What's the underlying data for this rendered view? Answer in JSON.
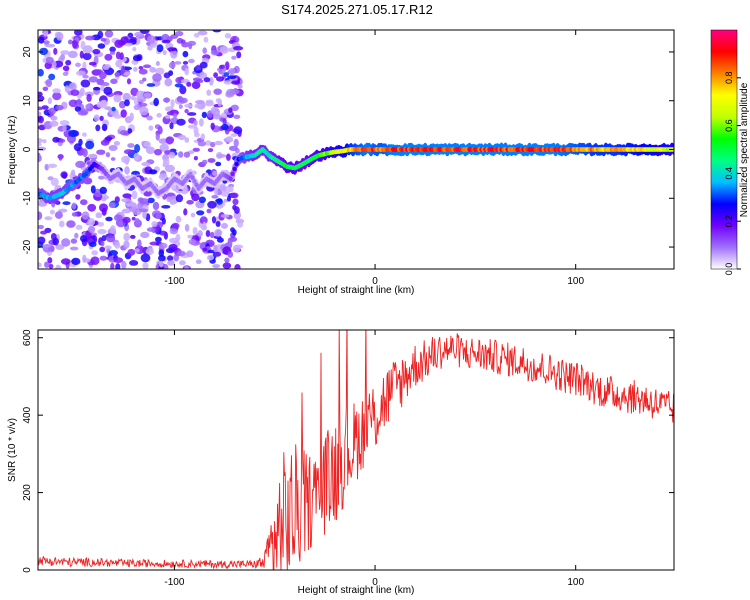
{
  "title": "S174.2025.271.05.17.R12",
  "chart_data": [
    {
      "type": "heatmap",
      "title": "S174.2025.271.05.17.R12",
      "xlabel": "Height of straight line (km)",
      "ylabel": "Frequency (Hz)",
      "xlim": [
        -168,
        149
      ],
      "ylim": [
        -24.5,
        24.5
      ],
      "x_ticks": [
        -100,
        0,
        100
      ],
      "y_ticks": [
        -20,
        -10,
        0,
        10,
        20
      ],
      "colorbar": {
        "label": "Normalized spectral amplitude",
        "range": [
          0,
          1
        ],
        "ticks": [
          0.0,
          0.2,
          0.4,
          0.6,
          0.8
        ],
        "tick_labels": [
          "0.0",
          "0.2",
          "0.4",
          "0.6",
          "0.8"
        ],
        "colormap": [
          "#ffffff",
          "#a070ff",
          "#7000ff",
          "#0000ff",
          "#00c0ff",
          "#00ff80",
          "#00ff00",
          "#c0ff00",
          "#ffff00",
          "#ff8000",
          "#ff0000",
          "#ff0080"
        ]
      },
      "signal_ridge": {
        "name": "Frequency trace",
        "x": [
          -168,
          -162,
          -156,
          -150,
          -144,
          -140,
          -136,
          -132,
          -128,
          -124,
          -120,
          -116,
          -112,
          -108,
          -104,
          -100,
          -96,
          -92,
          -88,
          -84,
          -80,
          -76,
          -72,
          -68,
          -64,
          -60,
          -56,
          -52,
          -48,
          -44,
          -40,
          -36,
          -32,
          -28,
          -24,
          -20,
          -16,
          -12,
          -8,
          -4,
          0,
          4,
          8,
          12,
          16,
          20,
          30,
          40,
          50,
          60,
          70,
          80,
          90,
          100,
          110,
          120,
          130,
          140,
          149
        ],
        "y": [
          -9,
          -10,
          -9,
          -7,
          -5,
          -3,
          -4,
          -6,
          -5,
          -7,
          -6,
          -8,
          -7,
          -9,
          -8,
          -6,
          -7,
          -5,
          -8,
          -6,
          -7,
          -5,
          -6,
          -2,
          -1.5,
          -1.2,
          0,
          -1.5,
          -2.5,
          -3.5,
          -3.8,
          -3,
          -2,
          -1.2,
          -0.8,
          -0.5,
          -0.3,
          0,
          0,
          0,
          0,
          0,
          0,
          0,
          0,
          0,
          0,
          0,
          0,
          0,
          0,
          0,
          0,
          0,
          0,
          0,
          0,
          0,
          0
        ],
        "amplitude": [
          0.35,
          0.4,
          0.4,
          0.35,
          0.35,
          0.25,
          0.15,
          0.1,
          0.1,
          0.1,
          0.1,
          0.1,
          0.1,
          0.1,
          0.1,
          0.1,
          0.1,
          0.1,
          0.1,
          0.1,
          0.1,
          0.1,
          0.15,
          0.3,
          0.4,
          0.45,
          0.45,
          0.45,
          0.5,
          0.55,
          0.55,
          0.5,
          0.55,
          0.6,
          0.65,
          0.7,
          0.75,
          0.85,
          0.9,
          0.95,
          0.9,
          0.9,
          0.95,
          0.95,
          0.95,
          0.95,
          0.95,
          0.95,
          0.95,
          0.95,
          0.95,
          0.95,
          0.95,
          0.9,
          0.85,
          0.85,
          0.8,
          0.75,
          0.7
        ]
      },
      "noise_region": {
        "x_range": [
          -168,
          -67
        ],
        "amplitude_range": [
          0.05,
          0.3
        ]
      }
    },
    {
      "type": "line",
      "xlabel": "Height of straight line (km)",
      "ylabel": "SNR (10 * v/v)",
      "xlim": [
        -168,
        149
      ],
      "ylim": [
        0,
        620
      ],
      "x_ticks": [
        -100,
        0,
        100
      ],
      "y_ticks": [
        0,
        200,
        400,
        600
      ],
      "line_color": "#ee2222",
      "series": [
        {
          "x": [
            -168,
            -160,
            -150,
            -140,
            -130,
            -120,
            -110,
            -100,
            -90,
            -80,
            -70,
            -60,
            -55,
            -50,
            -45,
            -40,
            -35,
            -30,
            -25,
            -20,
            -15,
            -10,
            -5,
            0,
            5,
            10,
            15,
            20,
            25,
            30,
            35,
            40,
            45,
            50,
            55,
            60,
            65,
            70,
            75,
            80,
            85,
            90,
            95,
            100,
            105,
            110,
            115,
            120,
            125,
            130,
            135,
            140,
            145,
            149
          ],
          "values": [
            25,
            22,
            20,
            20,
            18,
            17,
            17,
            16,
            16,
            15,
            15,
            15,
            20,
            80,
            120,
            150,
            170,
            190,
            220,
            260,
            300,
            330,
            370,
            400,
            440,
            470,
            500,
            530,
            540,
            560,
            570,
            570,
            560,
            560,
            555,
            550,
            545,
            540,
            535,
            525,
            520,
            510,
            500,
            495,
            485,
            470,
            460,
            455,
            450,
            445,
            440,
            430,
            420,
            415
          ],
          "noise": [
            12,
            12,
            12,
            11,
            10,
            10,
            10,
            10,
            10,
            10,
            10,
            10,
            25,
            140,
            200,
            180,
            140,
            120,
            130,
            150,
            130,
            110,
            100,
            100,
            90,
            80,
            70,
            60,
            55,
            50,
            45,
            45,
            45,
            45,
            45,
            45,
            45,
            45,
            45,
            45,
            45,
            45,
            45,
            45,
            45,
            45,
            45,
            45,
            45,
            45,
            45,
            45,
            45,
            45
          ]
        }
      ]
    }
  ]
}
